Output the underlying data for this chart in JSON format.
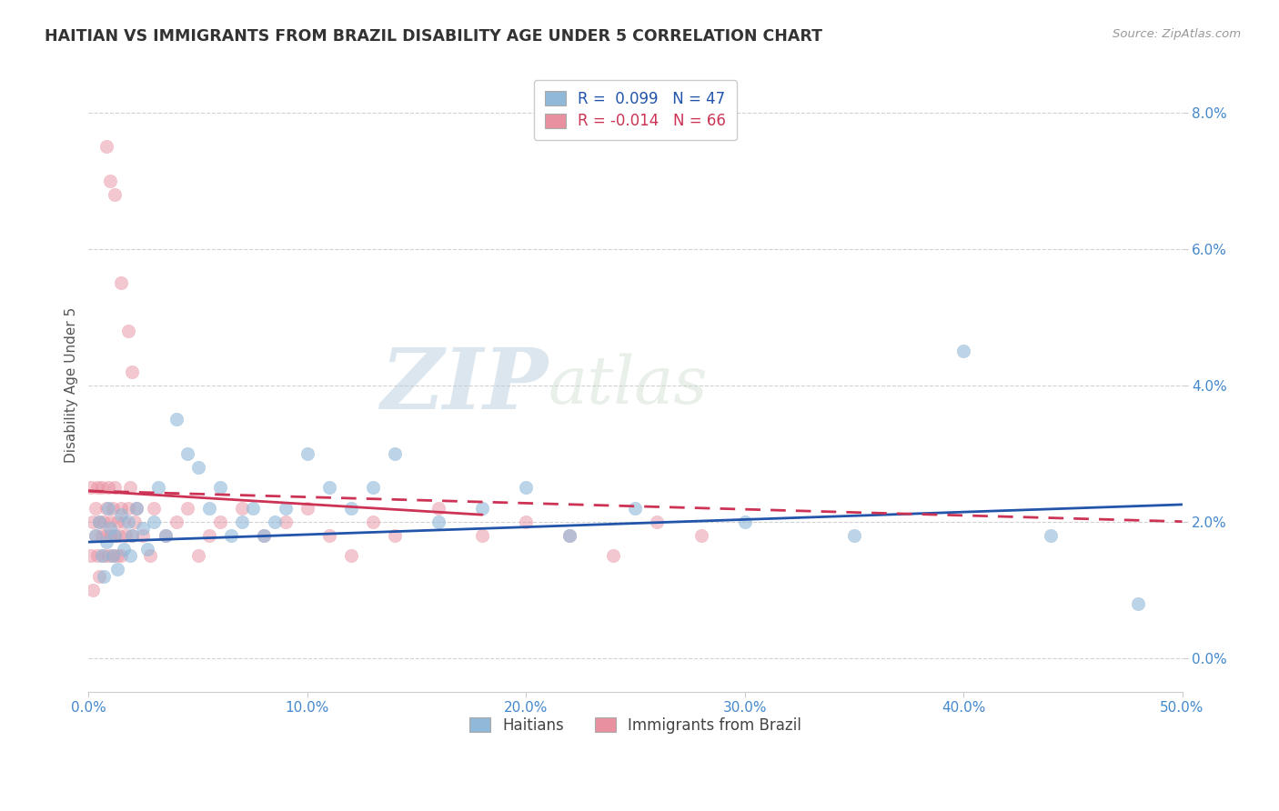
{
  "title": "HAITIAN VS IMMIGRANTS FROM BRAZIL DISABILITY AGE UNDER 5 CORRELATION CHART",
  "source": "Source: ZipAtlas.com",
  "xlabel_ticks": [
    "0.0%",
    "10.0%",
    "20.0%",
    "30.0%",
    "40.0%",
    "50.0%"
  ],
  "ylabel_ticks": [
    "0.0%",
    "2.0%",
    "4.0%",
    "6.0%",
    "8.0%"
  ],
  "ylabel_label": "Disability Age Under 5",
  "xlim": [
    0.0,
    0.5
  ],
  "ylim": [
    -0.005,
    0.085
  ],
  "ytick_vals": [
    0.0,
    0.02,
    0.04,
    0.06,
    0.08
  ],
  "xtick_vals": [
    0.0,
    0.1,
    0.2,
    0.3,
    0.4,
    0.5
  ],
  "legend_entries": [
    {
      "label": "Haitians",
      "R": "0.099",
      "N": "47",
      "color": "#a8c8e8"
    },
    {
      "label": "Immigrants from Brazil",
      "R": "-0.014",
      "N": "66",
      "color": "#f4b8c8"
    }
  ],
  "watermark_zip": "ZIP",
  "watermark_atlas": "atlas",
  "haitians_x": [
    0.003,
    0.005,
    0.006,
    0.007,
    0.008,
    0.009,
    0.01,
    0.011,
    0.012,
    0.013,
    0.015,
    0.016,
    0.018,
    0.019,
    0.02,
    0.022,
    0.025,
    0.027,
    0.03,
    0.032,
    0.035,
    0.04,
    0.045,
    0.05,
    0.055,
    0.06,
    0.065,
    0.07,
    0.075,
    0.08,
    0.085,
    0.09,
    0.1,
    0.11,
    0.12,
    0.13,
    0.14,
    0.16,
    0.18,
    0.2,
    0.22,
    0.25,
    0.3,
    0.35,
    0.4,
    0.44,
    0.48
  ],
  "haitians_y": [
    0.018,
    0.02,
    0.015,
    0.012,
    0.017,
    0.022,
    0.019,
    0.015,
    0.018,
    0.013,
    0.021,
    0.016,
    0.02,
    0.015,
    0.018,
    0.022,
    0.019,
    0.016,
    0.02,
    0.025,
    0.018,
    0.035,
    0.03,
    0.028,
    0.022,
    0.025,
    0.018,
    0.02,
    0.022,
    0.018,
    0.02,
    0.022,
    0.03,
    0.025,
    0.022,
    0.025,
    0.03,
    0.02,
    0.022,
    0.025,
    0.018,
    0.022,
    0.02,
    0.018,
    0.045,
    0.018,
    0.008
  ],
  "brazil_x": [
    0.001,
    0.001,
    0.002,
    0.002,
    0.003,
    0.003,
    0.004,
    0.004,
    0.005,
    0.005,
    0.006,
    0.006,
    0.007,
    0.007,
    0.008,
    0.008,
    0.009,
    0.009,
    0.01,
    0.01,
    0.011,
    0.011,
    0.012,
    0.012,
    0.013,
    0.013,
    0.014,
    0.015,
    0.015,
    0.016,
    0.017,
    0.018,
    0.019,
    0.02,
    0.021,
    0.022,
    0.025,
    0.028,
    0.03,
    0.035,
    0.04,
    0.045,
    0.05,
    0.055,
    0.06,
    0.07,
    0.08,
    0.09,
    0.1,
    0.11,
    0.12,
    0.13,
    0.14,
    0.16,
    0.18,
    0.2,
    0.22,
    0.24,
    0.26,
    0.28,
    0.008,
    0.01,
    0.012,
    0.015,
    0.018,
    0.02
  ],
  "brazil_y": [
    0.025,
    0.015,
    0.02,
    0.01,
    0.018,
    0.022,
    0.015,
    0.025,
    0.02,
    0.012,
    0.018,
    0.025,
    0.02,
    0.015,
    0.022,
    0.018,
    0.025,
    0.015,
    0.02,
    0.018,
    0.015,
    0.022,
    0.018,
    0.025,
    0.02,
    0.015,
    0.018,
    0.022,
    0.015,
    0.02,
    0.018,
    0.022,
    0.025,
    0.018,
    0.02,
    0.022,
    0.018,
    0.015,
    0.022,
    0.018,
    0.02,
    0.022,
    0.015,
    0.018,
    0.02,
    0.022,
    0.018,
    0.02,
    0.022,
    0.018,
    0.015,
    0.02,
    0.018,
    0.022,
    0.018,
    0.02,
    0.018,
    0.015,
    0.02,
    0.018,
    0.075,
    0.07,
    0.068,
    0.055,
    0.048,
    0.042
  ],
  "blue_scatter_color": "#90b8d8",
  "pink_scatter_color": "#e890a0",
  "blue_line_color": "#2255AA",
  "pink_line_color": "#CC3355",
  "blue_line_y0": 0.017,
  "blue_line_y1": 0.0225,
  "pink_line_y0": 0.0245,
  "pink_line_y1": 0.02,
  "title_fontsize": 12.5,
  "axis_tick_fontsize": 11,
  "ylabel_fontsize": 11,
  "background_color": "#ffffff",
  "grid_color": "#cccccc",
  "tick_label_color": "#4488cc"
}
